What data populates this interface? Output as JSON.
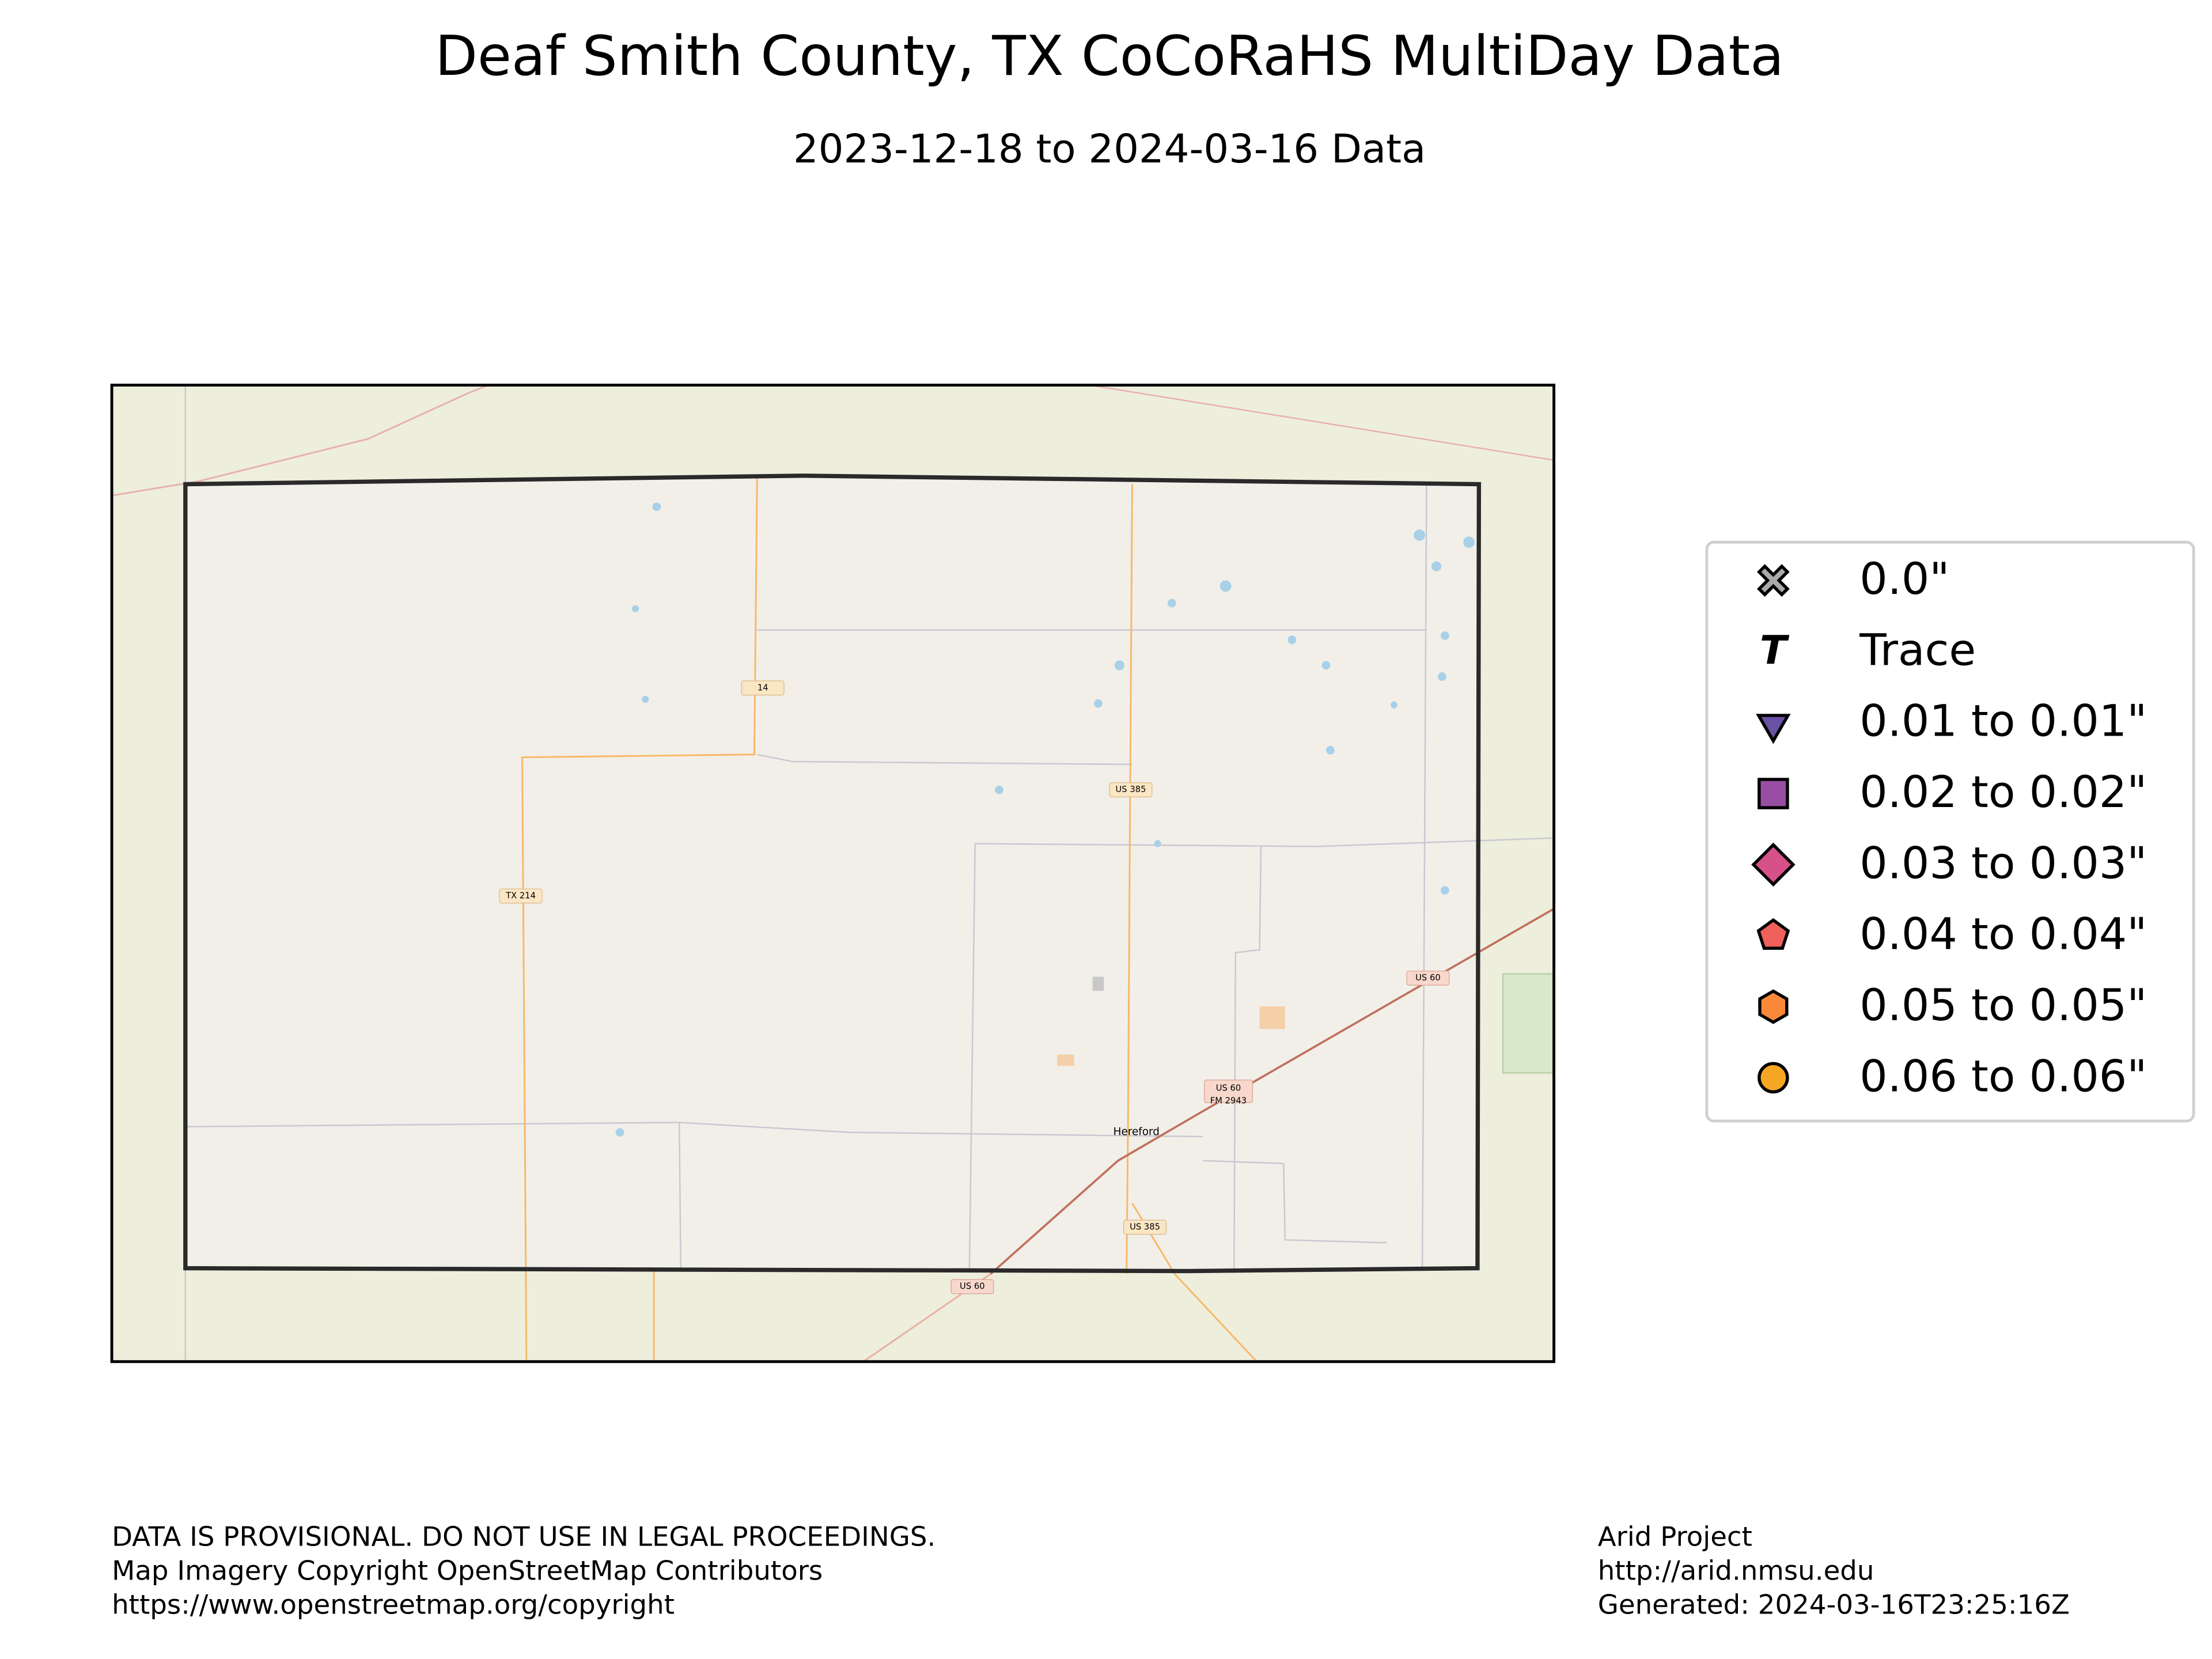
{
  "header": {
    "title": "Deaf Smith County, TX CoCoRaHS MultiDay Data",
    "subtitle": "2023-12-18 to 2024-03-16 Data"
  },
  "legend": {
    "items": [
      {
        "label": "0.0\"",
        "marker": "x",
        "color": "#aaaaaa"
      },
      {
        "label": "Trace",
        "marker": "text",
        "marker_text": "T",
        "color": "#000000"
      },
      {
        "label": "0.01 to 0.01\"",
        "marker": "triangle",
        "color": "#6a51a3"
      },
      {
        "label": "0.02 to 0.02\"",
        "marker": "square",
        "color": "#984ea3"
      },
      {
        "label": "0.03 to 0.03\"",
        "marker": "diamond",
        "color": "#d6508a"
      },
      {
        "label": "0.04 to 0.04\"",
        "marker": "pentagon",
        "color": "#f0605d"
      },
      {
        "label": "0.05 to 0.05\"",
        "marker": "hexagon",
        "color": "#f98838"
      },
      {
        "label": "0.06 to 0.06\"",
        "marker": "circle",
        "color": "#f5a623"
      }
    ]
  },
  "map": {
    "labels": [
      "US 385",
      "TX 214",
      "14",
      "US 60",
      "US 60",
      "FM 2943",
      "Hereford",
      "US 385",
      "US 60"
    ]
  },
  "footer": {
    "left": [
      "DATA IS PROVISIONAL. DO NOT USE IN LEGAL PROCEEDINGS.",
      "Map Imagery Copyright OpenStreetMap Contributors",
      "https://www.openstreetmap.org/copyright"
    ],
    "right": [
      "Arid Project",
      "http://arid.nmsu.edu",
      "Generated: 2024-03-16T23:25:16Z"
    ]
  }
}
